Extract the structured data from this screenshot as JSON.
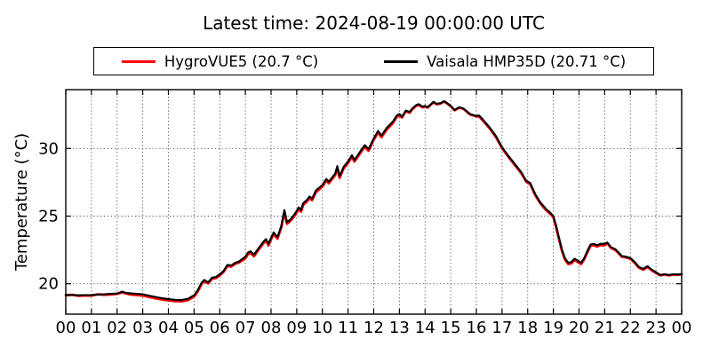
{
  "title": "Latest time: 2024-08-19 00:00:00 UTC",
  "legend": {
    "position": "upper center",
    "items": [
      {
        "label": "HygroVUE5 (20.7 °C)",
        "color": "#ff0000"
      },
      {
        "label": "Vaisala HMP35D (20.71 °C)",
        "color": "#000000"
      }
    ]
  },
  "chart_data": {
    "type": "line",
    "title": "Latest time: 2024-08-19 00:00:00 UTC",
    "xlabel": "",
    "ylabel": "Temperature (°C)",
    "xlim": [
      0,
      24
    ],
    "ylim": [
      17.75,
      34.35
    ],
    "x_ticks": [
      0,
      1,
      2,
      3,
      4,
      5,
      6,
      7,
      8,
      9,
      10,
      11,
      12,
      13,
      14,
      15,
      16,
      17,
      18,
      19,
      20,
      21,
      22,
      23,
      24
    ],
    "x_tick_labels": [
      "00",
      "01",
      "02",
      "03",
      "04",
      "05",
      "06",
      "07",
      "08",
      "09",
      "10",
      "11",
      "12",
      "13",
      "14",
      "15",
      "16",
      "17",
      "18",
      "19",
      "20",
      "21",
      "22",
      "23",
      "00"
    ],
    "y_ticks": [
      20,
      25,
      30
    ],
    "y_tick_labels": [
      "20",
      "25",
      "30"
    ],
    "grid": true,
    "grid_style": "dotted",
    "x_unit": "hour (UTC)",
    "x": [
      0,
      0.25,
      0.5,
      0.75,
      1,
      1.25,
      1.5,
      1.75,
      2,
      2.2,
      2.35,
      2.5,
      2.75,
      3,
      3.25,
      3.5,
      3.75,
      4,
      4.25,
      4.5,
      4.75,
      5,
      5.15,
      5.3,
      5.4,
      5.55,
      5.7,
      5.85,
      6,
      6.15,
      6.3,
      6.45,
      6.6,
      6.75,
      7,
      7.1,
      7.2,
      7.33,
      7.5,
      7.7,
      7.8,
      7.9,
      8,
      8.1,
      8.25,
      8.4,
      8.52,
      8.62,
      8.75,
      8.9,
      9,
      9.08,
      9.17,
      9.25,
      9.4,
      9.5,
      9.6,
      9.75,
      10,
      10.15,
      10.25,
      10.5,
      10.58,
      10.67,
      10.83,
      11,
      11.15,
      11.25,
      11.5,
      11.65,
      11.8,
      12,
      12.17,
      12.3,
      12.5,
      12.75,
      12.9,
      13,
      13.1,
      13.25,
      13.4,
      13.5,
      13.65,
      13.75,
      13.9,
      14,
      14.1,
      14.33,
      14.45,
      14.6,
      14.75,
      14.9,
      15,
      15.15,
      15.33,
      15.5,
      15.75,
      16,
      16.1,
      16.25,
      16.5,
      16.75,
      17,
      17.25,
      17.5,
      17.75,
      17.95,
      18.1,
      18.3,
      18.5,
      18.7,
      18.85,
      19,
      19.1,
      19.2,
      19.33,
      19.45,
      19.58,
      19.7,
      19.83,
      19.95,
      20.08,
      20.2,
      20.33,
      20.45,
      20.58,
      20.7,
      20.83,
      21,
      21.1,
      21.25,
      21.42,
      21.55,
      21.67,
      21.83,
      22,
      22.17,
      22.33,
      22.5,
      22.67,
      22.83,
      23,
      23.17,
      23.33,
      23.5,
      23.67,
      23.83,
      24
    ],
    "series": [
      {
        "name": "HygroVUE5 (20.7 °C)",
        "sensor": "HygroVUE5",
        "latest_value_c": 20.7,
        "color": "#ff0000",
        "linewidth": 2.8,
        "values": [
          19.14,
          19.19,
          19.1,
          19.13,
          19.12,
          19.22,
          19.18,
          19.2,
          19.25,
          19.36,
          19.28,
          19.2,
          19.16,
          19.12,
          19.02,
          18.92,
          18.83,
          18.77,
          18.71,
          18.7,
          18.78,
          19.05,
          19.45,
          20.0,
          20.18,
          20.02,
          20.37,
          20.42,
          20.62,
          20.87,
          21.32,
          21.27,
          21.47,
          21.57,
          21.88,
          22.18,
          22.28,
          22.03,
          22.48,
          22.98,
          23.18,
          22.83,
          23.28,
          23.68,
          23.33,
          24.18,
          25.33,
          24.43,
          24.63,
          24.98,
          25.28,
          25.53,
          25.33,
          25.83,
          26.08,
          26.33,
          26.18,
          26.78,
          27.18,
          27.63,
          27.43,
          28.03,
          28.58,
          27.83,
          28.53,
          28.93,
          29.38,
          29.03,
          29.73,
          30.13,
          29.83,
          30.63,
          31.18,
          30.83,
          31.38,
          31.88,
          32.33,
          32.43,
          32.29,
          32.74,
          32.64,
          32.89,
          33.14,
          33.22,
          33.04,
          33.09,
          33.02,
          33.42,
          33.27,
          33.32,
          33.47,
          33.27,
          33.12,
          32.82,
          33.02,
          32.92,
          32.52,
          32.37,
          32.37,
          32.07,
          31.52,
          30.87,
          30.02,
          29.37,
          28.77,
          28.17,
          27.52,
          27.37,
          26.52,
          25.92,
          25.47,
          25.22,
          24.92,
          24.25,
          23.45,
          22.45,
          21.8,
          21.45,
          21.5,
          21.75,
          21.6,
          21.45,
          21.8,
          22.35,
          22.8,
          22.85,
          22.75,
          22.85,
          22.85,
          22.99,
          22.64,
          22.49,
          22.24,
          21.99,
          21.94,
          21.84,
          21.54,
          21.19,
          21.04,
          21.24,
          20.99,
          20.79,
          20.62,
          20.67,
          20.62,
          20.67,
          20.65,
          20.7
        ]
      },
      {
        "name": "Vaisala HMP35D (20.71 °C)",
        "sensor": "Vaisala HMP35D",
        "latest_value_c": 20.71,
        "color": "#000000",
        "linewidth": 2.1,
        "values": [
          19.18,
          19.17,
          19.15,
          19.16,
          19.17,
          19.2,
          19.22,
          19.25,
          19.28,
          19.42,
          19.32,
          19.3,
          19.26,
          19.22,
          19.12,
          19.02,
          18.93,
          18.87,
          18.81,
          18.8,
          18.88,
          19.15,
          19.55,
          20.1,
          20.28,
          20.1,
          20.45,
          20.5,
          20.7,
          20.95,
          21.4,
          21.35,
          21.55,
          21.65,
          22.0,
          22.3,
          22.4,
          22.15,
          22.6,
          23.1,
          23.3,
          22.95,
          23.4,
          23.8,
          23.45,
          24.3,
          25.45,
          24.55,
          24.75,
          25.1,
          25.4,
          25.65,
          25.45,
          25.95,
          26.2,
          26.45,
          26.3,
          26.9,
          27.3,
          27.75,
          27.55,
          28.15,
          28.7,
          27.95,
          28.65,
          29.05,
          29.5,
          29.15,
          29.85,
          30.25,
          29.95,
          30.75,
          31.3,
          30.95,
          31.5,
          32.0,
          32.45,
          32.55,
          32.35,
          32.8,
          32.7,
          32.95,
          33.2,
          33.28,
          33.1,
          33.15,
          33.05,
          33.45,
          33.3,
          33.35,
          33.5,
          33.3,
          33.15,
          32.85,
          33.05,
          32.95,
          32.55,
          32.4,
          32.45,
          32.15,
          31.6,
          30.95,
          30.1,
          29.45,
          28.85,
          28.25,
          27.6,
          27.45,
          26.6,
          26.0,
          25.55,
          25.3,
          25.0,
          24.35,
          23.55,
          22.55,
          21.9,
          21.55,
          21.6,
          21.85,
          21.7,
          21.55,
          21.9,
          22.45,
          22.9,
          22.95,
          22.85,
          22.95,
          22.95,
          23.05,
          22.7,
          22.55,
          22.3,
          22.05,
          22.0,
          21.9,
          21.6,
          21.25,
          21.1,
          21.3,
          21.05,
          20.85,
          20.65,
          20.7,
          20.65,
          20.7,
          20.68,
          20.71
        ]
      }
    ],
    "colors": {
      "frame": "#000000",
      "grid": "#555555",
      "background": "#ffffff",
      "text": "#000000"
    }
  }
}
